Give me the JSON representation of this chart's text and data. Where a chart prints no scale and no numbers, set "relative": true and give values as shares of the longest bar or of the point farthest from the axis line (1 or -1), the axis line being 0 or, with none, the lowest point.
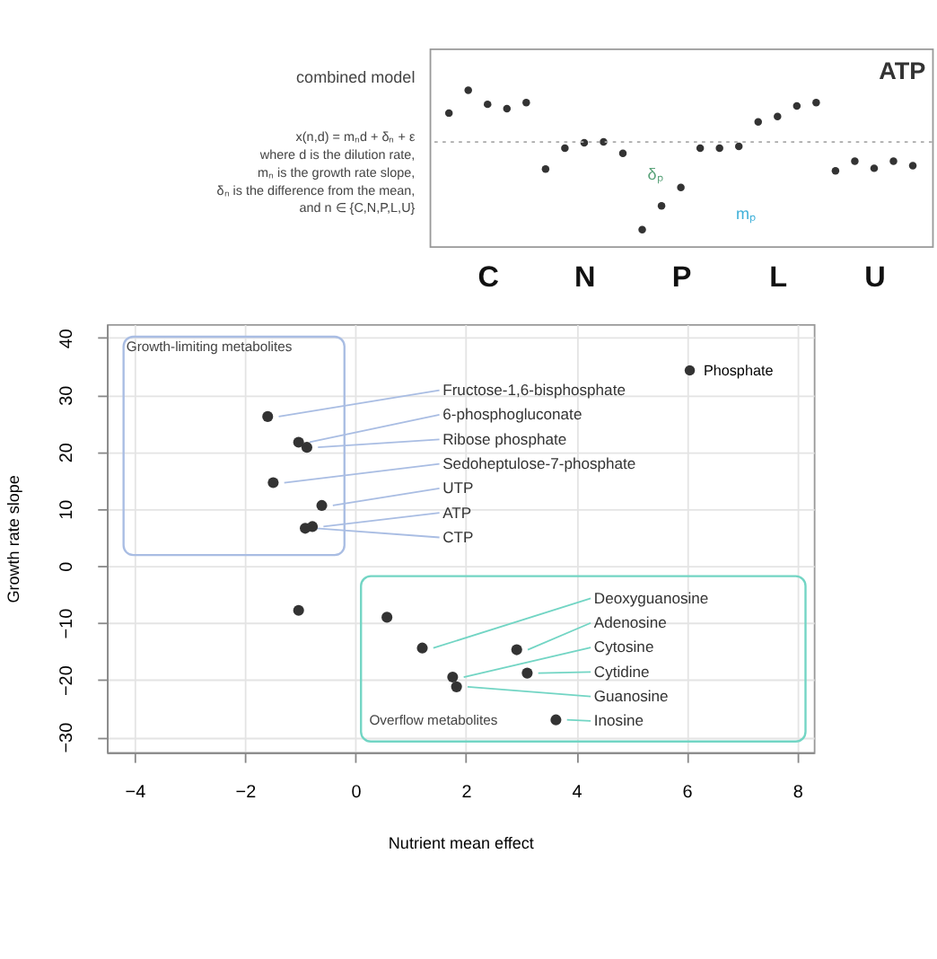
{
  "chart_data": [
    {
      "type": "scatter",
      "title": "combined model",
      "subtitle": "x(n,d) = mₙd + δₙ + ε\nwhere d is the dilution rate,\nmₙ is the growth rate slope,\nδₙ is the difference from the mean,\nand n ∈ {C,N,P,L,U}",
      "categories": [
        null,
        null,
        "C",
        null,
        null,
        null,
        null,
        "N",
        null,
        null,
        null,
        null,
        "P",
        null,
        null,
        null,
        null,
        "L",
        null,
        null,
        null,
        null,
        "U",
        null,
        null
      ],
      "relative": true,
      "marker": "circle",
      "series": [
        {
          "color": "#333333",
          "values": [
            0.33,
            0.59,
            0.43,
            0.38,
            0.45,
            -0.31,
            -0.07,
            -0.01,
            0.0,
            -0.13,
            -1.0,
            -0.73,
            -0.52,
            -0.07,
            -0.07,
            -0.05,
            0.23,
            0.29,
            0.41,
            0.45,
            -0.33,
            -0.22,
            -0.3,
            -0.22,
            -0.27
          ]
        }
      ],
      "ref_lines": [
        {
          "axis": "y",
          "value": 0,
          "line_style": "dotted",
          "color": "#aaaaaa"
        }
      ],
      "annotations": [
        "ATP",
        "δₚ",
        "mₚ"
      ]
    },
    {
      "type": "scatter",
      "xlabel": "Nutrient mean effect",
      "ylabel": "Growth rate slope",
      "marker": "circle",
      "grid": true,
      "legend": "top right",
      "x": [
        -1.59,
        -1.03,
        -0.88,
        -1.49,
        -0.61,
        -0.78,
        -0.91,
        -1.03,
        0.57,
        1.21,
        2.92,
        1.76,
        3.11,
        1.83,
        3.63
      ],
      "series": [
        {
          "name": "Phosphate",
          "color": "#333333",
          "values": [
            26.2,
            21.7,
            20.8,
            14.6,
            10.6,
            6.9,
            6.6,
            -7.8,
            -9.0,
            -14.4,
            -14.7,
            -19.5,
            -18.8,
            -21.2,
            -27.0
          ]
        }
      ],
      "xlim": [
        -4.5,
        8.3
      ],
      "ylim": [
        -32.7,
        42.4
      ],
      "xticks": [
        -4,
        -2,
        0,
        2,
        4,
        6,
        8
      ],
      "yticks": [
        -30,
        -20,
        -10,
        0,
        10,
        20,
        30,
        40
      ],
      "annotations": [
        {
          "text": "Fructose-1,6-bisphosphate",
          "x": -1.59,
          "y": 26.2
        },
        {
          "text": "6-phosphogluconate",
          "x": -1.03,
          "y": 21.7
        },
        {
          "text": "Ribose phosphate",
          "x": -0.88,
          "y": 20.8
        },
        {
          "text": "Sedoheptulose-7-phosphate",
          "x": -1.49,
          "y": 14.6
        },
        {
          "text": "UTP",
          "x": -0.61,
          "y": 10.6
        },
        {
          "text": "ATP",
          "x": -0.78,
          "y": 6.9
        },
        {
          "text": "CTP",
          "x": -0.91,
          "y": 6.6
        },
        {
          "text": "Deoxyguanosine",
          "x": 1.21,
          "y": -14.4
        },
        {
          "text": "Adenosine",
          "x": 2.92,
          "y": -14.7
        },
        {
          "text": "Cytosine",
          "x": 1.76,
          "y": -19.5
        },
        {
          "text": "Cytidine",
          "x": 3.11,
          "y": -18.8
        },
        {
          "text": "Guanosine",
          "x": 1.83,
          "y": -21.2
        },
        {
          "text": "Inosine",
          "x": 3.63,
          "y": -27.0
        },
        "Growth-limiting metabolites",
        "Overflow metabolites"
      ]
    }
  ]
}
